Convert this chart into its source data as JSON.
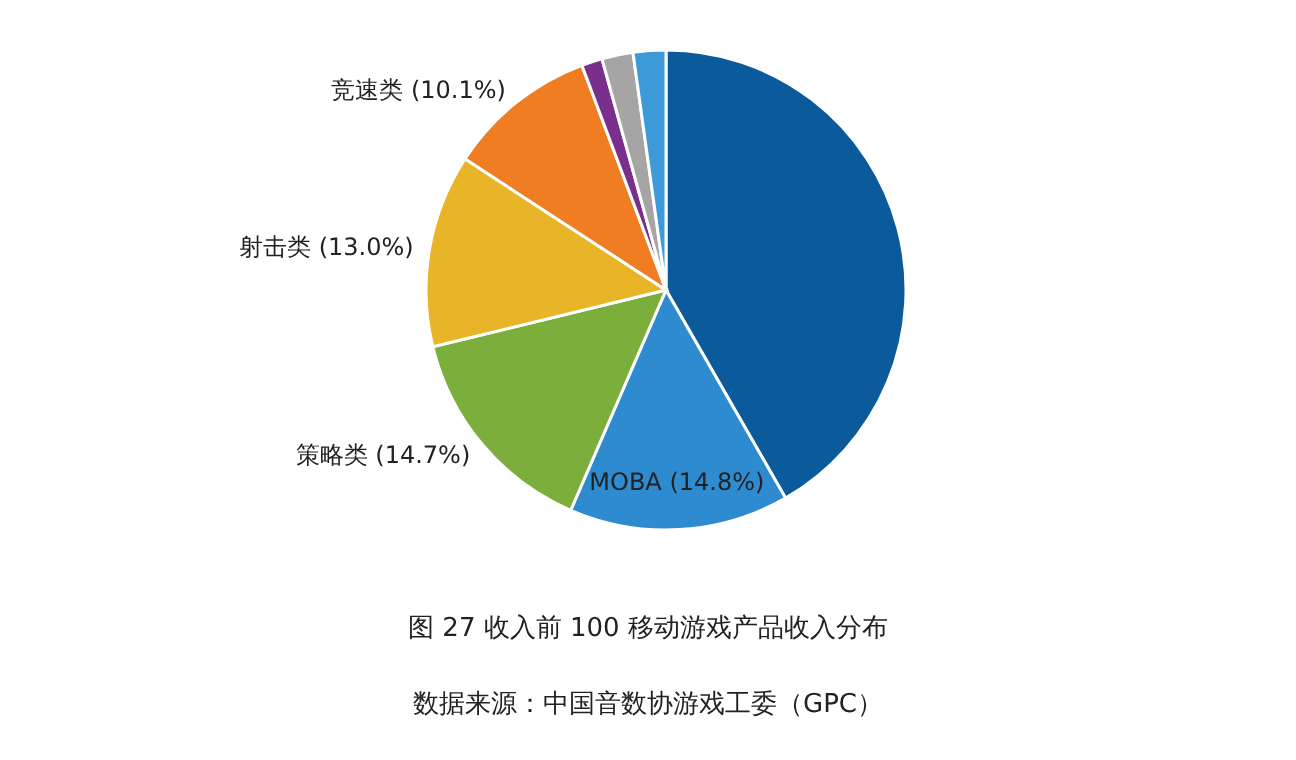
{
  "chart_data": {
    "type": "pie",
    "title": "图 27  收入前 100 移动游戏产品收入分布",
    "categories": [
      null,
      "MOBA",
      "策略类",
      "射击类",
      "竞速类",
      null,
      null,
      null
    ],
    "values": [
      41.7,
      14.8,
      14.7,
      13.0,
      10.1,
      1.4,
      2.1,
      2.2
    ],
    "value_labels": [
      null,
      "(14.8%)",
      "(14.7%)",
      "(13.0%)",
      "(10.1%)",
      null,
      null,
      null
    ],
    "colors": [
      "#0b5a9c",
      "#2f8bd0",
      "#7cae3c",
      "#e8b528",
      "#f07d22",
      "#7a2f8c",
      "#a5a5a5",
      "#3c9ad8"
    ],
    "annotations": [
      "数据来源：中国音数协游戏工委（GPC）"
    ]
  }
}
